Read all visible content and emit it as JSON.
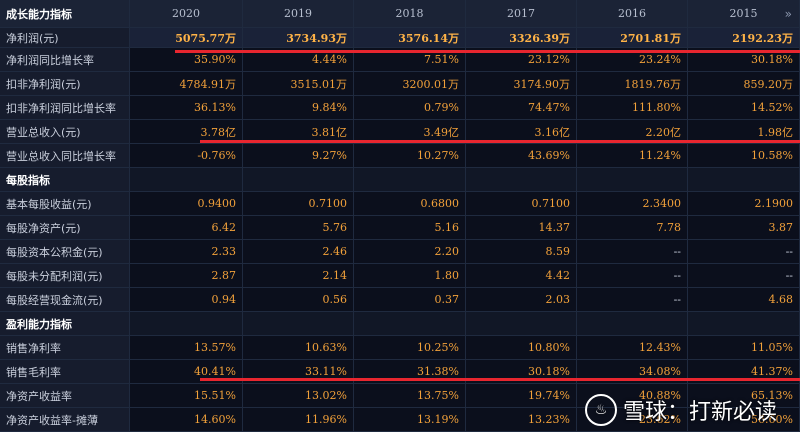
{
  "header": {
    "title": "成长能力指标",
    "years": [
      "2020",
      "2019",
      "2018",
      "2017",
      "2016",
      "2015"
    ],
    "more_icon": "chevron-right-icon"
  },
  "rows": [
    {
      "label": "净利润(元)",
      "values": [
        "5075.77万",
        "3734.93万",
        "3576.14万",
        "3326.39万",
        "2701.81万",
        "2192.23万"
      ],
      "highlight": true
    },
    {
      "label": "净利润同比增长率",
      "values": [
        "35.90%",
        "4.44%",
        "7.51%",
        "23.12%",
        "23.24%",
        "30.18%"
      ]
    },
    {
      "label": "扣非净利润(元)",
      "values": [
        "4784.91万",
        "3515.01万",
        "3200.01万",
        "3174.90万",
        "1819.76万",
        "859.20万"
      ]
    },
    {
      "label": "扣非净利润同比增长率",
      "values": [
        "36.13%",
        "9.84%",
        "0.79%",
        "74.47%",
        "111.80%",
        "14.52%"
      ]
    },
    {
      "label": "营业总收入(元)",
      "values": [
        "3.78亿",
        "3.81亿",
        "3.49亿",
        "3.16亿",
        "2.20亿",
        "1.98亿"
      ]
    },
    {
      "label": "营业总收入同比增长率",
      "values": [
        "-0.76%",
        "9.27%",
        "10.27%",
        "43.69%",
        "11.24%",
        "10.58%"
      ]
    },
    {
      "label": "每股指标",
      "values": [
        "",
        "",
        "",
        "",
        "",
        ""
      ],
      "section": true
    },
    {
      "label": "基本每股收益(元)",
      "values": [
        "0.9400",
        "0.7100",
        "0.6800",
        "0.7100",
        "2.3400",
        "2.1900"
      ]
    },
    {
      "label": "每股净资产(元)",
      "values": [
        "6.42",
        "5.76",
        "5.16",
        "14.37",
        "7.78",
        "3.87"
      ]
    },
    {
      "label": "每股资本公积金(元)",
      "values": [
        "2.33",
        "2.46",
        "2.20",
        "8.59",
        "--",
        "--"
      ]
    },
    {
      "label": "每股未分配利润(元)",
      "values": [
        "2.87",
        "2.14",
        "1.80",
        "4.42",
        "--",
        "--"
      ]
    },
    {
      "label": "每股经营现金流(元)",
      "values": [
        "0.94",
        "0.56",
        "0.37",
        "2.03",
        "--",
        "4.68"
      ]
    },
    {
      "label": "盈利能力指标",
      "values": [
        "",
        "",
        "",
        "",
        "",
        ""
      ],
      "section": true
    },
    {
      "label": "销售净利率",
      "values": [
        "13.57%",
        "10.63%",
        "10.25%",
        "10.80%",
        "12.43%",
        "11.05%"
      ]
    },
    {
      "label": "销售毛利率",
      "values": [
        "40.41%",
        "33.11%",
        "31.38%",
        "30.18%",
        "34.08%",
        "41.37%"
      ]
    },
    {
      "label": "净资产收益率",
      "values": [
        "15.51%",
        "13.02%",
        "13.75%",
        "19.74%",
        "40.88%",
        "65.13%"
      ]
    },
    {
      "label": "净资产收益率-摊薄",
      "values": [
        "14.60%",
        "11.96%",
        "13.19%",
        "13.23%",
        "23.62%",
        "56.60%"
      ]
    }
  ],
  "watermark": {
    "logo_char": "♨",
    "text": "雪球：打新必读"
  },
  "colors": {
    "value": "#f2a13a",
    "accent_line": "#e8262f",
    "background": "#0b0f1c"
  }
}
